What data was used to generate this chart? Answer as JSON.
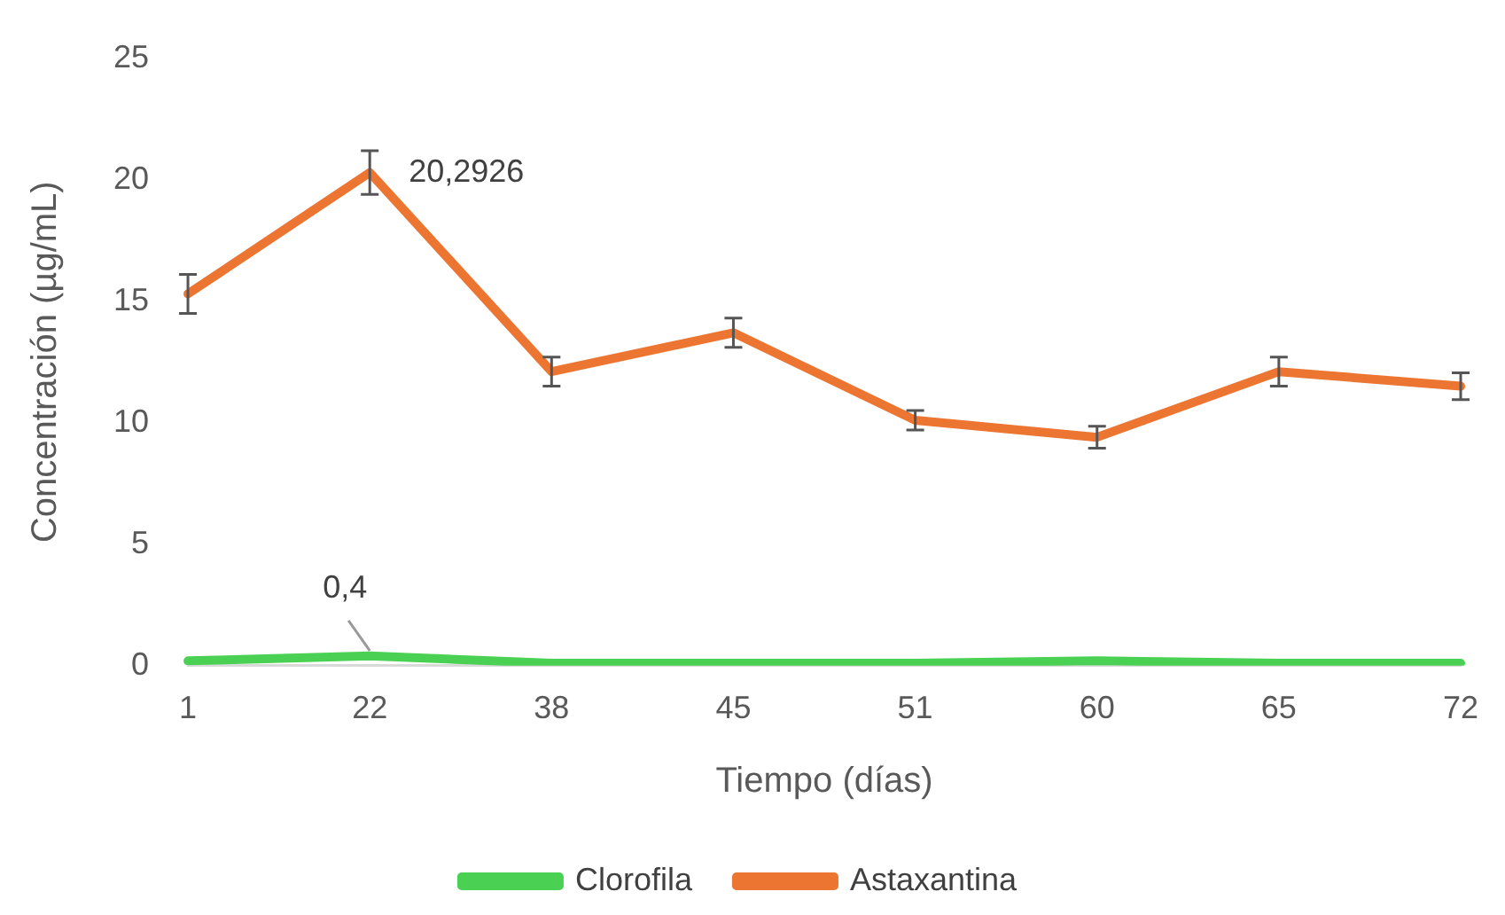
{
  "chart_data": {
    "type": "line",
    "xlabel": "Tiempo (días)",
    "ylabel": "Concentración (µg/mL)",
    "categories": [
      "1",
      "22",
      "38",
      "45",
      "51",
      "60",
      "65",
      "72"
    ],
    "ylim": [
      0,
      25
    ],
    "yticks": [
      0,
      5,
      10,
      15,
      20,
      25
    ],
    "grid": false,
    "legend": "bottom",
    "series": [
      {
        "name": "Clorofila",
        "color": "#4ad153",
        "values": [
          0.2,
          0.4,
          0.1,
          0.1,
          0.1,
          0.2,
          0.1,
          0.1
        ],
        "value_labels": [
          null,
          "0,4",
          null,
          null,
          null,
          null,
          null,
          null
        ]
      },
      {
        "name": "Astaxantina",
        "color": "#ed7532",
        "values": [
          15.3,
          20.2926,
          12.1,
          13.7,
          10.1,
          9.4,
          12.1,
          11.5
        ],
        "errors": [
          0.8,
          0.9,
          0.6,
          0.6,
          0.4,
          0.45,
          0.6,
          0.55
        ],
        "value_labels": [
          null,
          "20,2926",
          null,
          null,
          null,
          null,
          null,
          null
        ]
      }
    ]
  }
}
